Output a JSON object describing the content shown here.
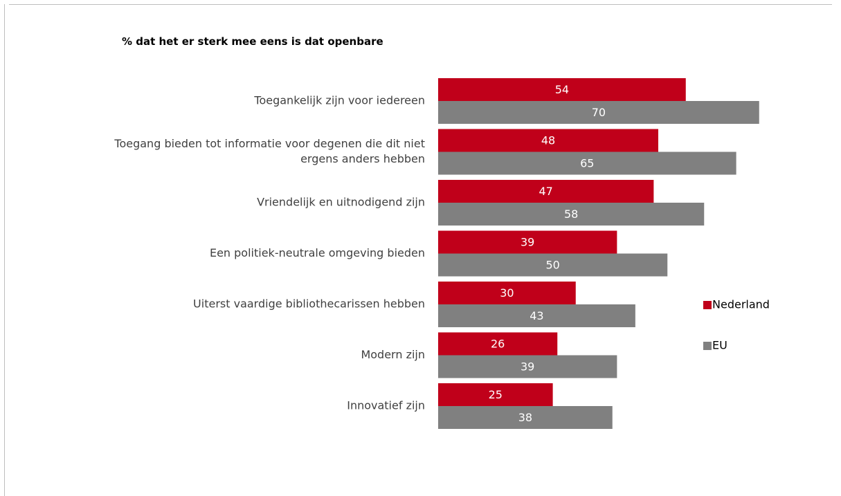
{
  "chart_data": {
    "type": "bar",
    "orientation": "horizontal",
    "title": "% dat het er sterk mee eens is dat openbare",
    "categories": [
      [
        "Toegankelijk zijn voor iedereen"
      ],
      [
        "Toegang bieden tot informatie voor degenen die dit niet",
        "ergens anders hebben"
      ],
      [
        "Vriendelijk en uitnodigend zijn"
      ],
      [
        "Een politiek-neutrale omgeving bieden"
      ],
      [
        "Uiterst vaardige bibliothecarissen hebben"
      ],
      [
        "Modern zijn"
      ],
      [
        "Innovatief zijn"
      ]
    ],
    "series": [
      {
        "name": "Nederland",
        "color": "#c0001a",
        "values": [
          54,
          48,
          47,
          39,
          30,
          26,
          25
        ]
      },
      {
        "name": "EU",
        "color": "#808080",
        "values": [
          70,
          65,
          58,
          50,
          43,
          39,
          38
        ]
      }
    ],
    "xlim": [
      0,
      100
    ],
    "grid": false,
    "legend": "right",
    "data_labels": true
  }
}
